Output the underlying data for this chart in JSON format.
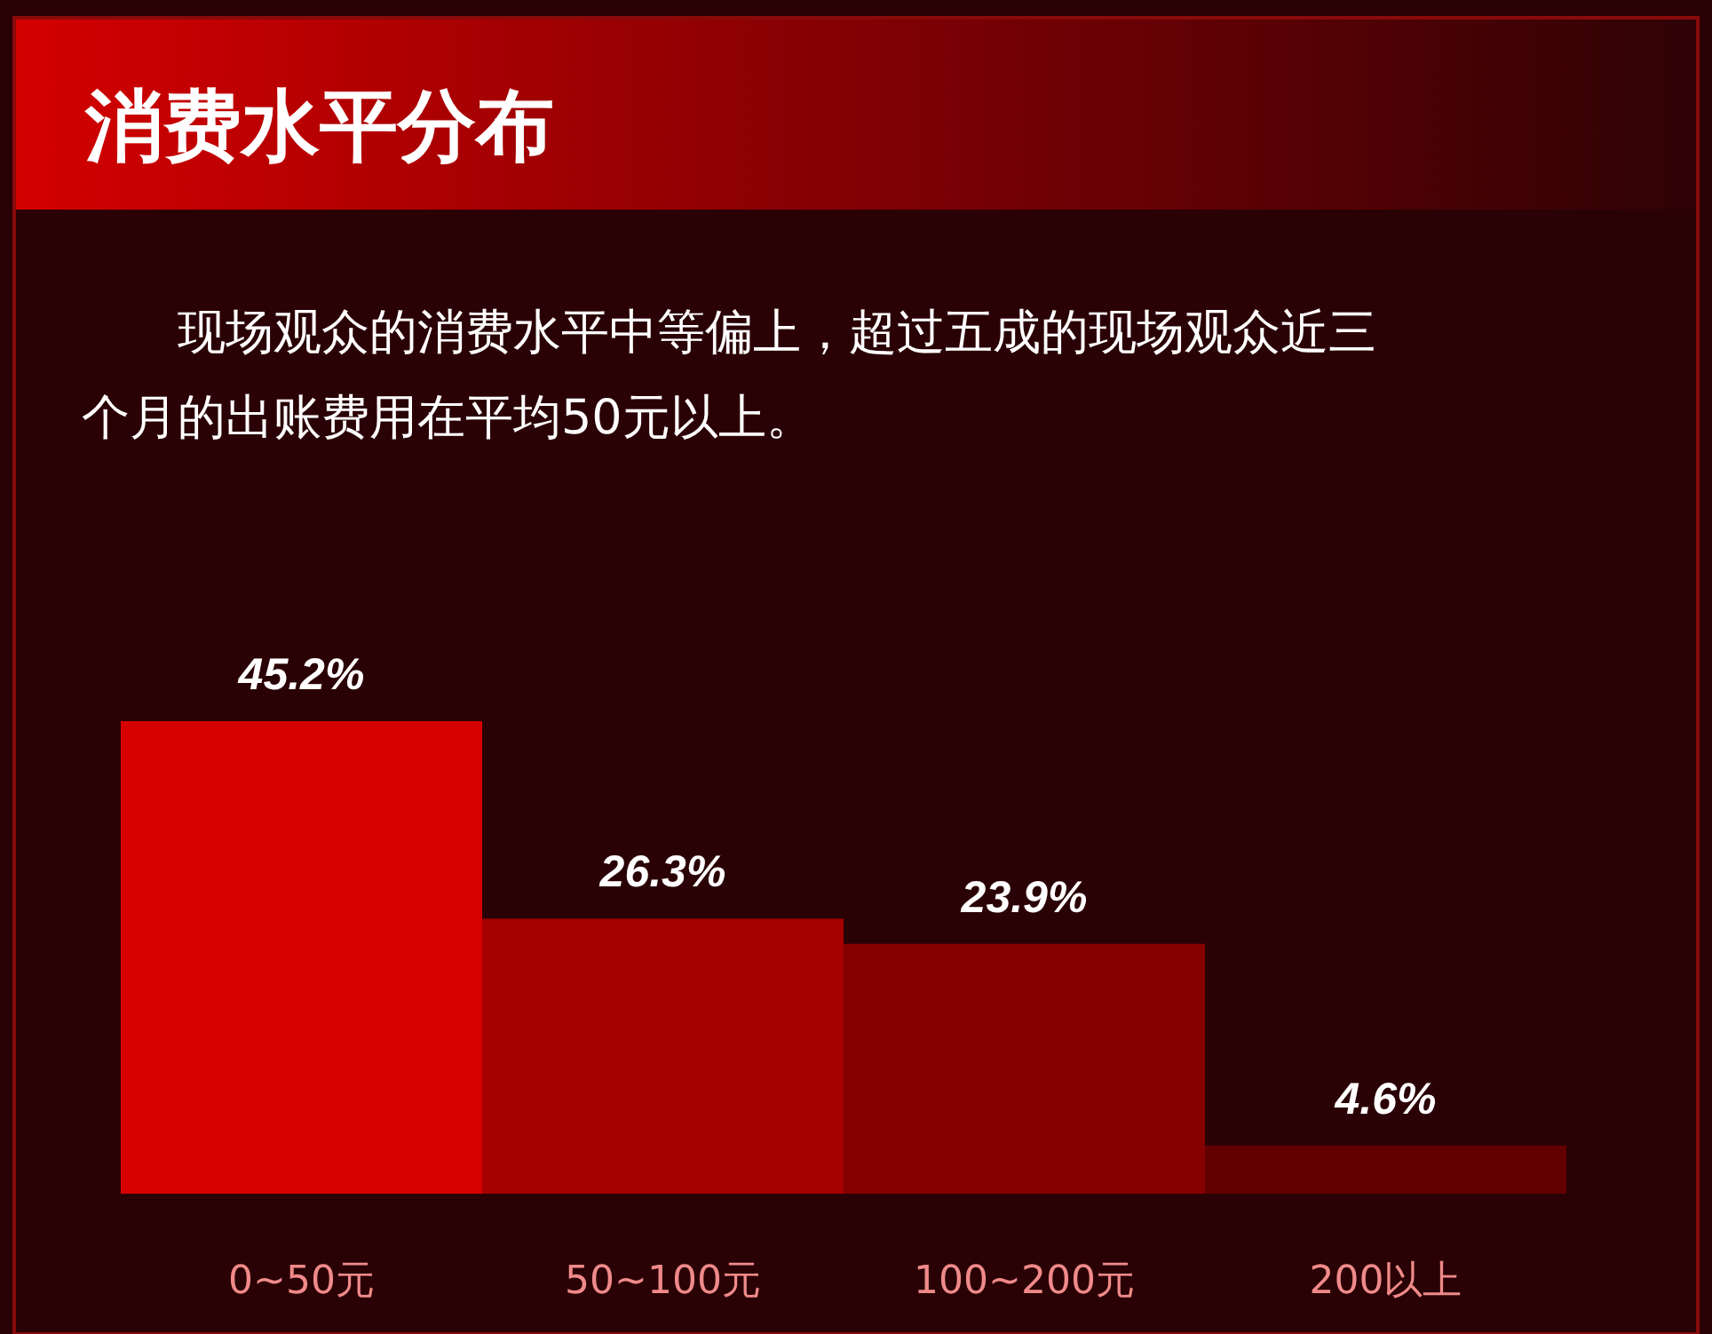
{
  "chart_data": {
    "type": "bar",
    "title": "消费水平分布",
    "subtitle": "现场观众的消费水平中等偏上，超过五成的现场观众近三个月的出账费用在平均50元以上。",
    "categories": [
      "0~50元",
      "50~100元",
      "100~200元",
      "200以上"
    ],
    "values": [
      45.2,
      26.3,
      23.9,
      4.6
    ],
    "colors": [
      "#d60000",
      "#a60000",
      "#850000",
      "#620000"
    ],
    "value_labels": [
      "45.2%",
      "26.3%",
      "23.9%",
      "4.6%"
    ]
  }
}
